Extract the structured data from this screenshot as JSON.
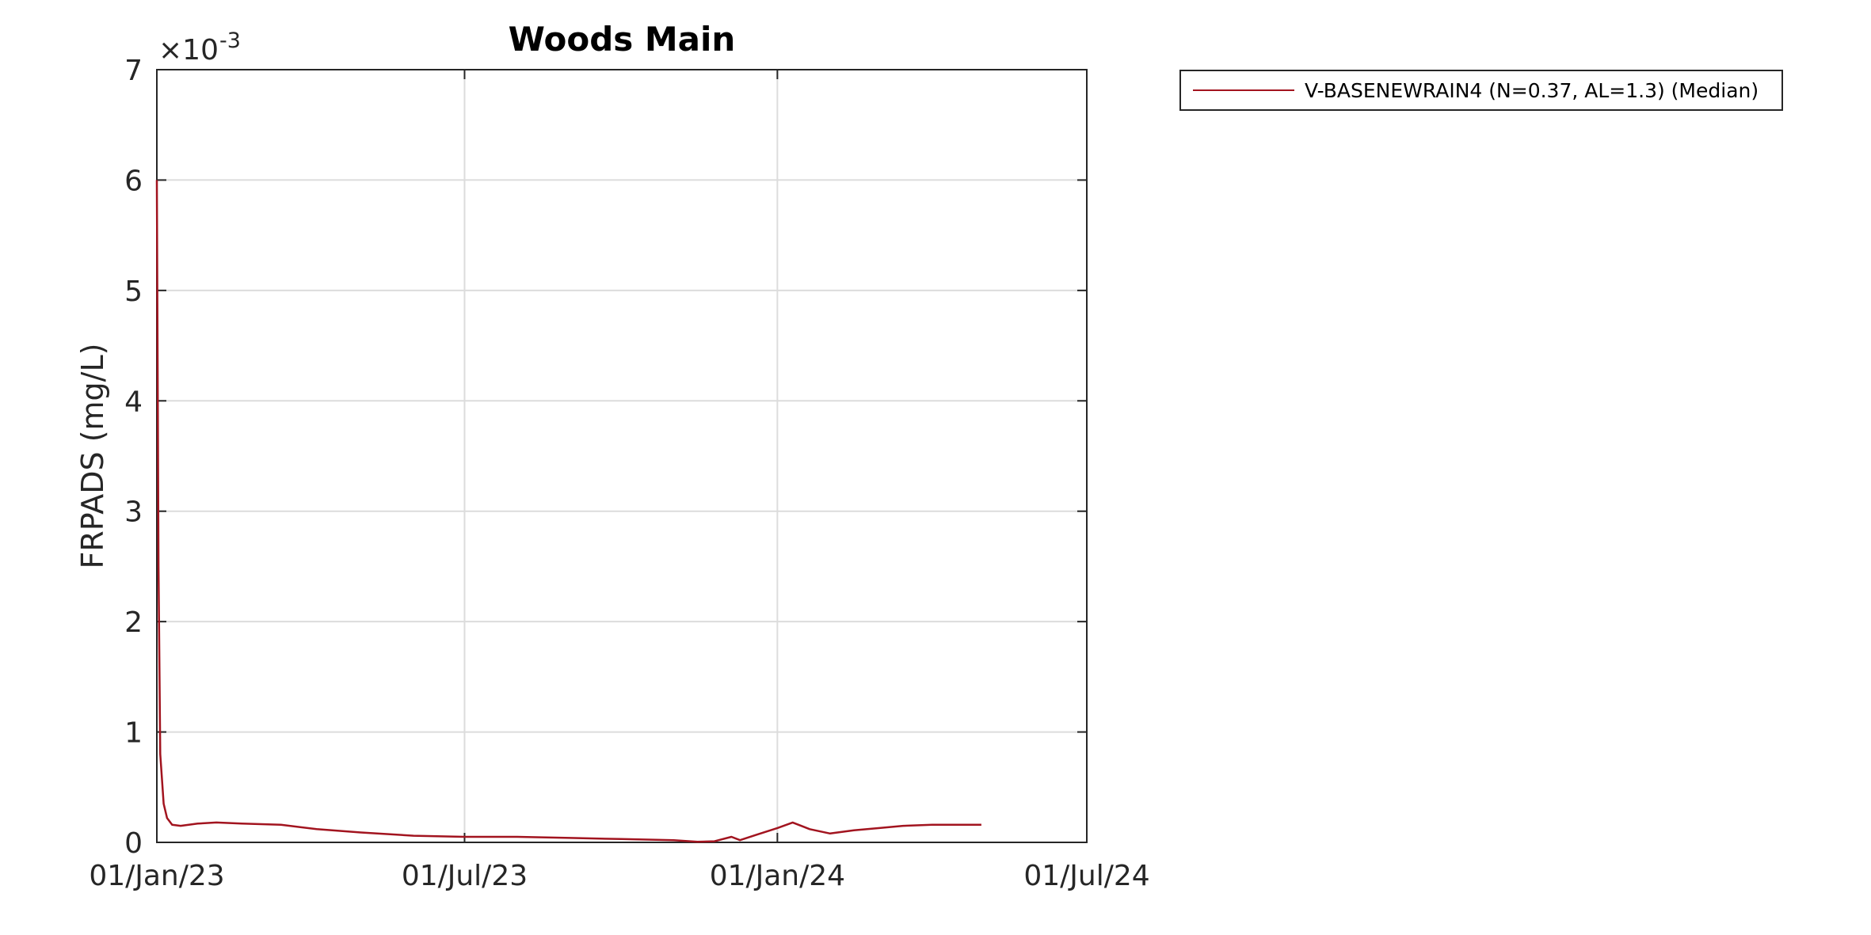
{
  "chart_data": {
    "type": "line",
    "title": "Woods Main",
    "xlabel": "",
    "ylabel": "FRPADS (mg/L)",
    "y_exponent_label": "×10",
    "y_exponent_power": "-3",
    "x_tick_labels": [
      "01/Jan/23",
      "01/Jul/23",
      "01/Jan/24",
      "01/Jul/24"
    ],
    "x_tick_dates": [
      "2023-01-01",
      "2023-07-01",
      "2024-01-01",
      "2024-07-01"
    ],
    "xlim": [
      "2023-01-01",
      "2024-07-01"
    ],
    "y_tick_labels": [
      "0",
      "1",
      "2",
      "3",
      "4",
      "5",
      "6",
      "7"
    ],
    "y_ticks": [
      0,
      0.001,
      0.002,
      0.003,
      0.004,
      0.005,
      0.006,
      0.007
    ],
    "ylim": [
      0,
      0.007
    ],
    "grid": true,
    "legend_position": "outside-top-right",
    "series": [
      {
        "name": "V-BASENEWRAIN4 (N=0.37, AL=1.3) (Median)",
        "color": "#a2141f",
        "points": [
          [
            "2023-01-01",
            0.006
          ],
          [
            "2023-01-02",
            0.0025
          ],
          [
            "2023-01-03",
            0.0008
          ],
          [
            "2023-01-05",
            0.00035
          ],
          [
            "2023-01-07",
            0.00022
          ],
          [
            "2023-01-10",
            0.00016
          ],
          [
            "2023-01-15",
            0.00015
          ],
          [
            "2023-01-25",
            0.00017
          ],
          [
            "2023-02-05",
            0.00018
          ],
          [
            "2023-02-20",
            0.00017
          ],
          [
            "2023-03-15",
            0.00016
          ],
          [
            "2023-04-05",
            0.00012
          ],
          [
            "2023-05-01",
            9e-05
          ],
          [
            "2023-06-01",
            6e-05
          ],
          [
            "2023-07-01",
            5e-05
          ],
          [
            "2023-08-01",
            5e-05
          ],
          [
            "2023-09-01",
            4e-05
          ],
          [
            "2023-10-01",
            3e-05
          ],
          [
            "2023-11-01",
            2e-05
          ],
          [
            "2023-11-15",
            5e-06
          ],
          [
            "2023-11-25",
            1e-05
          ],
          [
            "2023-12-05",
            5e-05
          ],
          [
            "2023-12-10",
            2e-05
          ],
          [
            "2023-12-20",
            7e-05
          ],
          [
            "2024-01-01",
            0.00013
          ],
          [
            "2024-01-10",
            0.00018
          ],
          [
            "2024-01-20",
            0.00012
          ],
          [
            "2024-02-01",
            8e-05
          ],
          [
            "2024-02-15",
            0.00011
          ],
          [
            "2024-03-01",
            0.00013
          ],
          [
            "2024-03-15",
            0.00015
          ],
          [
            "2024-04-01",
            0.00016
          ],
          [
            "2024-04-30",
            0.00016
          ]
        ]
      }
    ]
  }
}
